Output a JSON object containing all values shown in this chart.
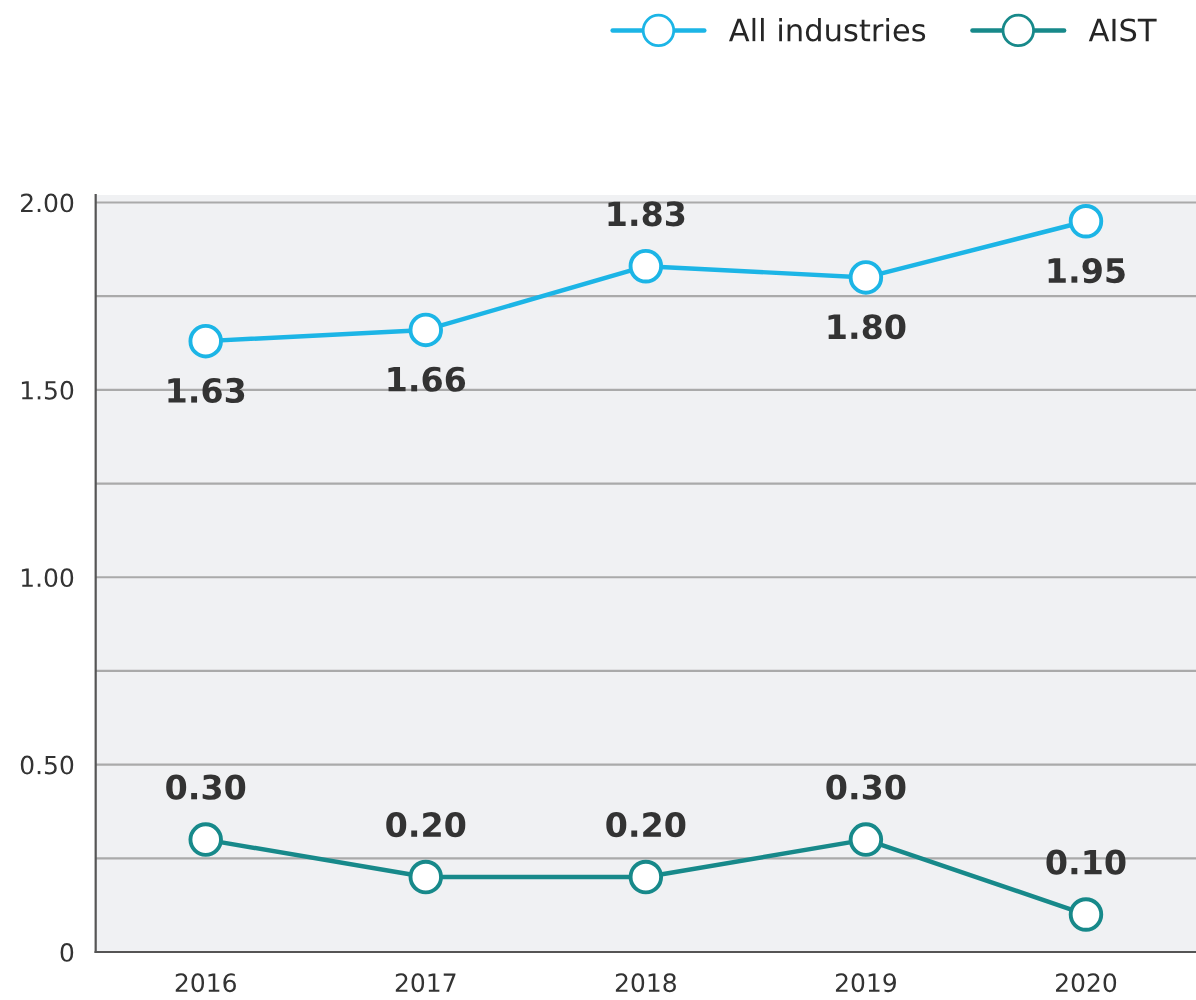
{
  "chart_data": {
    "type": "line",
    "categories": [
      "2016",
      "2017",
      "2018",
      "2019",
      "2020"
    ],
    "series": [
      {
        "name": "All industries",
        "color": "#1cb5e6",
        "values": [
          1.63,
          1.66,
          1.83,
          1.8,
          1.95
        ],
        "value_labels": [
          "1.63",
          "1.66",
          "1.83",
          "1.80",
          "1.95"
        ]
      },
      {
        "name": "AIST",
        "color": "#17898a",
        "values": [
          0.3,
          0.2,
          0.2,
          0.3,
          0.1
        ],
        "value_labels": [
          "0.30",
          "0.20",
          "0.20",
          "0.30",
          "0.10"
        ]
      }
    ],
    "ylim": [
      0,
      2.02
    ],
    "yticks": [
      0,
      {
        "value": 0.25,
        "label": null
      },
      {
        "value": 0.5,
        "label": "0.50"
      },
      {
        "value": 0.75,
        "label": null
      },
      {
        "value": 1,
        "label": "1.00"
      },
      {
        "value": 1.25,
        "label": null
      },
      {
        "value": 1.5,
        "label": "1.50"
      },
      {
        "value": 1.75,
        "label": null
      },
      {
        "value": 2,
        "label": "2.00"
      }
    ],
    "grid": "y",
    "legend": "top right",
    "marker": "circle",
    "line_style": "solid"
  }
}
